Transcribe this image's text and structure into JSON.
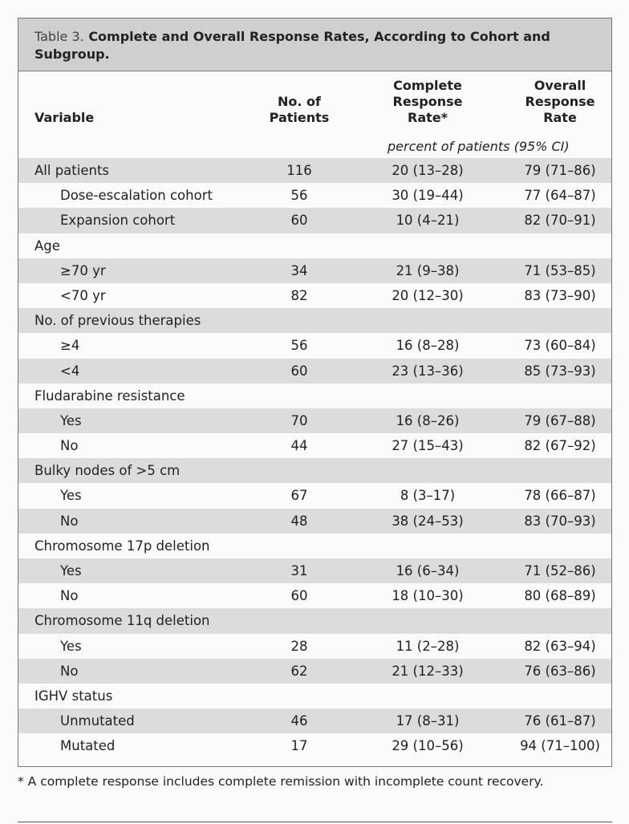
{
  "table": {
    "title": {
      "label": "Table 3.",
      "text": "Complete and Overall Response Rates, According to Cohort and Subgroup."
    },
    "columns": [
      "Variable",
      "No. of Patients",
      "Complete Response Rate*",
      "Overall Response Rate"
    ],
    "units": "percent of patients (95% CI)",
    "groups": [
      {
        "label": "All patients",
        "values": [
          "116",
          "20 (13–28)",
          "79 (71–86)"
        ],
        "rows": [
          [
            "Dose-escalation cohort",
            "56",
            "30 (19–44)",
            "77 (64–87)"
          ],
          [
            "Expansion cohort",
            "60",
            "10 (4–21)",
            "82 (70–91)"
          ]
        ]
      },
      {
        "label": "Age",
        "rows": [
          [
            "≥70 yr",
            "34",
            "21 (9–38)",
            "71 (53–85)"
          ],
          [
            "<70 yr",
            "82",
            "20 (12–30)",
            "83 (73–90)"
          ]
        ]
      },
      {
        "label": "No. of previous therapies",
        "rows": [
          [
            "≥4",
            "56",
            "16 (8–28)",
            "73 (60–84)"
          ],
          [
            "<4",
            "60",
            "23 (13–36)",
            "85 (73–93)"
          ]
        ]
      },
      {
        "label": "Fludarabine resistance",
        "rows": [
          [
            "Yes",
            "70",
            "16 (8–26)",
            "79 (67–88)"
          ],
          [
            "No",
            "44",
            "27 (15–43)",
            "82 (67–92)"
          ]
        ]
      },
      {
        "label": "Bulky nodes of >5 cm",
        "rows": [
          [
            "Yes",
            "67",
            "8 (3–17)",
            "78 (66–87)"
          ],
          [
            "No",
            "48",
            "38 (24–53)",
            "83 (70–93)"
          ]
        ]
      },
      {
        "label": "Chromosome 17p deletion",
        "rows": [
          [
            "Yes",
            "31",
            "16 (6–34)",
            "71 (52–86)"
          ],
          [
            "No",
            "60",
            "18 (10–30)",
            "80 (68–89)"
          ]
        ]
      },
      {
        "label": "Chromosome 11q deletion",
        "rows": [
          [
            "Yes",
            "28",
            "11 (2–28)",
            "82 (63–94)"
          ],
          [
            "No",
            "62",
            "21 (12–33)",
            "76 (63–86)"
          ]
        ]
      },
      {
        "label": "IGHV status",
        "rows": [
          [
            "Unmutated",
            "46",
            "17 (8–31)",
            "76 (61–87)"
          ],
          [
            "Mutated",
            "17",
            "29 (10–56)",
            "94 (71–100)"
          ]
        ]
      }
    ]
  },
  "footnote": "* A complete response includes complete remission with incomplete count recovery."
}
